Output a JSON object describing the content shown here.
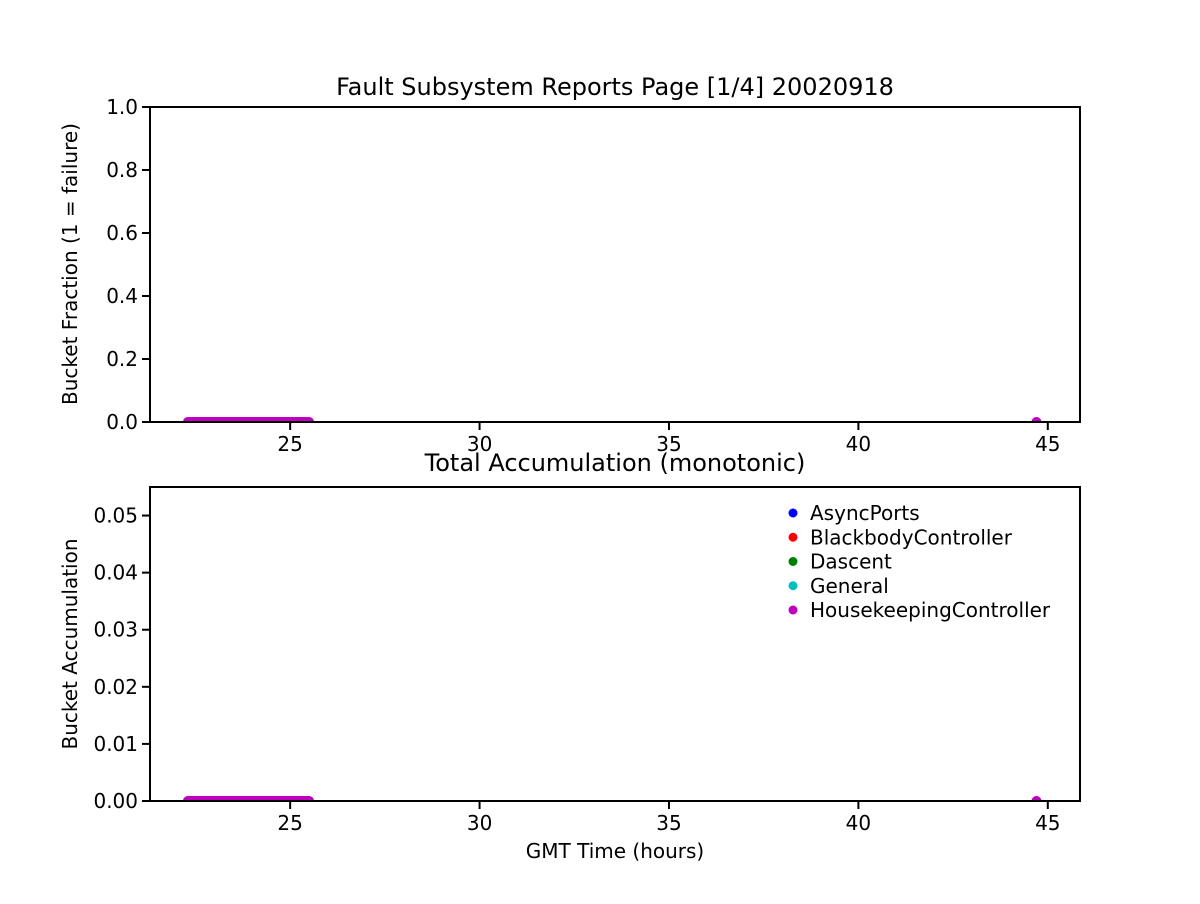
{
  "figure": {
    "background": "#ffffff",
    "axis_color": "#000000"
  },
  "chart_data": [
    {
      "type": "scatter",
      "title": "Fault Subsystem Reports Page [1/4] 20020918",
      "xlabel": "",
      "ylabel": "Bucket Fraction (1 = failure)",
      "xlim": [
        21.3,
        45.85
      ],
      "ylim": [
        0,
        1.0
      ],
      "xticks": [
        25,
        30,
        35,
        40,
        45
      ],
      "xtick_labels": [
        "25",
        "30",
        "35",
        "40",
        "45"
      ],
      "yticks": [
        0.0,
        0.2,
        0.4,
        0.6,
        0.8,
        1.0
      ],
      "ytick_labels": [
        "0.0",
        "0.2",
        "0.4",
        "0.6",
        "0.8",
        "1.0"
      ],
      "grid": false,
      "legend": null,
      "series": [
        {
          "name": "HousekeepingController",
          "color": "#bf00bf",
          "marker": "circle",
          "dense_run": {
            "x_start": 22.3,
            "x_end": 25.5,
            "y": 0
          },
          "points": [
            {
              "x": 44.7,
              "y": 0
            }
          ]
        }
      ]
    },
    {
      "type": "scatter",
      "title": "Total Accumulation (monotonic)",
      "xlabel": "GMT Time (hours)",
      "ylabel": "Bucket Accumulation",
      "xlim": [
        21.3,
        45.85
      ],
      "ylim": [
        0,
        0.055
      ],
      "xticks": [
        25,
        30,
        35,
        40,
        45
      ],
      "xtick_labels": [
        "25",
        "30",
        "35",
        "40",
        "45"
      ],
      "yticks": [
        0,
        0.01,
        0.02,
        0.03,
        0.04,
        0.05
      ],
      "ytick_labels": [
        "0.00",
        "0.01",
        "0.02",
        "0.03",
        "0.04",
        "0.05"
      ],
      "grid": false,
      "legend": {
        "position": "upper-right",
        "entries": [
          {
            "label": "AsyncPorts",
            "color": "#0000ff"
          },
          {
            "label": "BlackbodyController",
            "color": "#ff0000"
          },
          {
            "label": "Dascent",
            "color": "#008000"
          },
          {
            "label": "General",
            "color": "#00bfbf"
          },
          {
            "label": "HousekeepingController",
            "color": "#bf00bf"
          }
        ]
      },
      "series": [
        {
          "name": "HousekeepingController",
          "color": "#bf00bf",
          "marker": "circle",
          "dense_run": {
            "x_start": 22.3,
            "x_end": 25.5,
            "y": 0
          },
          "points": [
            {
              "x": 44.7,
              "y": 0
            }
          ]
        }
      ]
    }
  ]
}
